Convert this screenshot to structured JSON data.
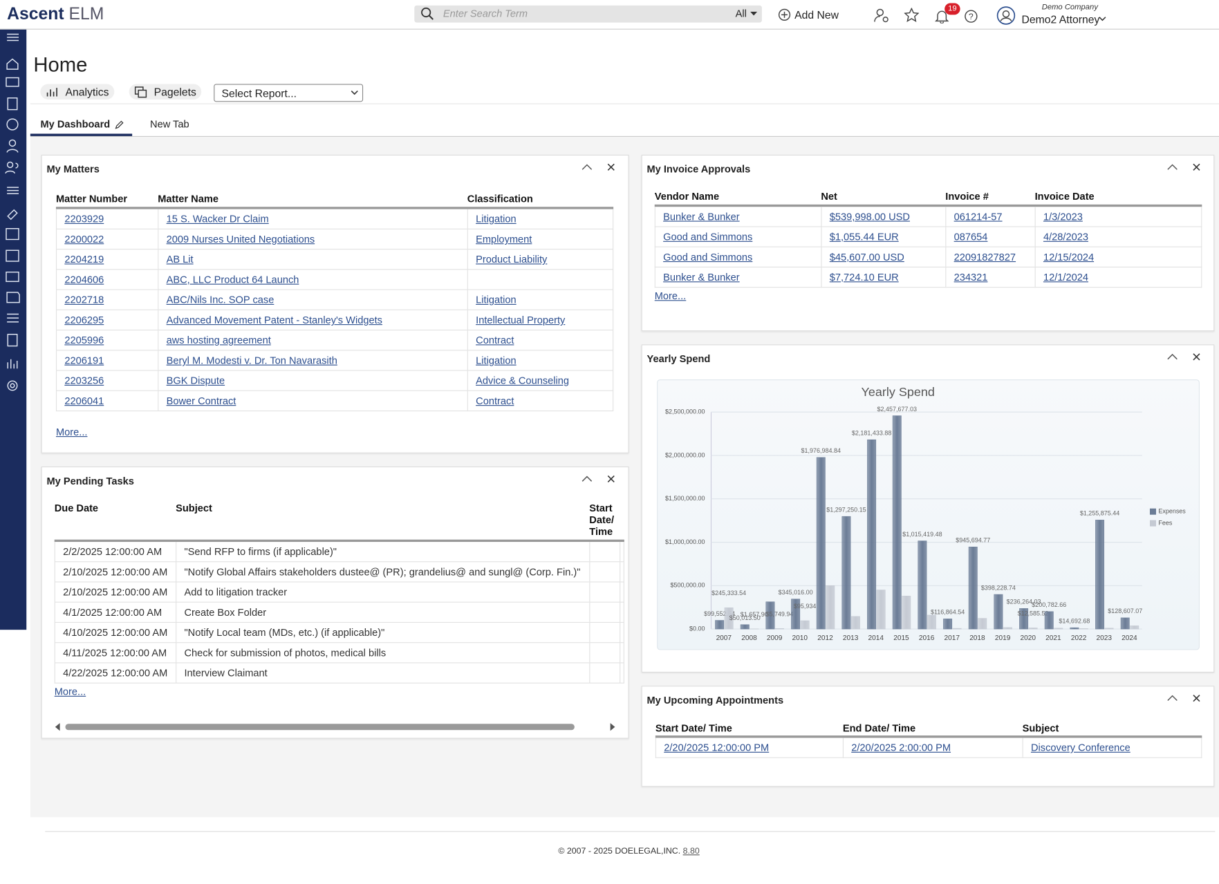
{
  "header": {
    "brand": "Ascent",
    "product": "ELM",
    "search_placeholder": "Enter Search Term",
    "search_scope": "All",
    "add_new": "Add New",
    "notifications": "19",
    "company": "Demo Company",
    "user": "Demo2 Attorney"
  },
  "page": {
    "title": "Home",
    "buttons": [
      "Analytics",
      "Pagelets"
    ],
    "report_select": "Select Report...",
    "tabs": [
      "My Dashboard",
      "New Tab"
    ]
  },
  "matters": {
    "title": "My Matters",
    "columns": [
      "Matter Number",
      "Matter Name",
      "Classification"
    ],
    "rows": [
      [
        "2203929",
        "15 S. Wacker Dr Claim",
        "Litigation"
      ],
      [
        "2200022",
        "2009 Nurses United Negotiations",
        "Employment"
      ],
      [
        "2204219",
        "AB Lit",
        "Product Liability"
      ],
      [
        "2204606",
        "ABC, LLC Product 64 Launch",
        null
      ],
      [
        "2202718",
        "ABC/Nils Inc. SOP case",
        "Litigation"
      ],
      [
        "2206295",
        "Advanced Movement Patent - Stanley's Widgets",
        "Intellectual Property"
      ],
      [
        "2205996",
        "aws hosting agreement",
        "Contract"
      ],
      [
        "2206191",
        "Beryl M. Modesti v. Dr. Ton Navarasith",
        "Litigation"
      ],
      [
        "2203256",
        "BGK Dispute",
        "Advice & Counseling"
      ],
      [
        "2206041",
        "Bower Contract",
        "Contract"
      ]
    ],
    "more": "More..."
  },
  "tasks": {
    "title": "My Pending Tasks",
    "columns": [
      "Due Date",
      "Subject",
      "Start Date/ Time"
    ],
    "rows": [
      [
        "2/2/2025 12:00:00 AM",
        "\"Send RFP to firms (if applicable)\""
      ],
      [
        "2/10/2025 12:00:00 AM",
        "\"Notify Global Affairs stakeholders dustee@ (PR); grandelius@ and sungl@ (Corp. Fin.)\""
      ],
      [
        "2/10/2025 12:00:00 AM",
        "Add to litigation tracker"
      ],
      [
        "4/1/2025 12:00:00 AM",
        "Create Box Folder"
      ],
      [
        "4/10/2025 12:00:00 AM",
        "\"Notify Local team (MDs, etc.) (if applicable)\""
      ],
      [
        "4/11/2025 12:00:00 AM",
        "Check for submission of photos, medical bills"
      ],
      [
        "4/22/2025 12:00:00 AM",
        "Interview Claimant"
      ]
    ],
    "more": "More..."
  },
  "invoices": {
    "title": "My Invoice Approvals",
    "columns": [
      "Vendor Name",
      "Net",
      "Invoice #",
      "Invoice Date"
    ],
    "rows": [
      [
        "Bunker & Bunker",
        "$539,998.00 USD",
        "061214-57",
        "1/3/2023"
      ],
      [
        "Good and Simmons",
        "$1,055.44 EUR",
        "087654",
        "4/28/2023"
      ],
      [
        "Good and Simmons",
        "$45,607.00 USD",
        "22091827827",
        "12/15/2024"
      ],
      [
        "Bunker & Bunker",
        "$7,724.10 EUR",
        "234321",
        "12/1/2024"
      ]
    ],
    "more": "More..."
  },
  "spend_widget": {
    "title": "Yearly Spend"
  },
  "chart_data": {
    "type": "bar",
    "title": "Yearly Spend",
    "categories": [
      "2007",
      "2008",
      "2009",
      "2010",
      "2012",
      "2013",
      "2014",
      "2015",
      "2016",
      "2017",
      "2018",
      "2019",
      "2020",
      "2021",
      "2022",
      "2023",
      "2024"
    ],
    "series": [
      {
        "name": "Expenses",
        "color": "#6b7c96",
        "values": [
          99552.54,
          50013.5,
          313000,
          345016,
          1976984.84,
          1297250.15,
          2181433.88,
          2457677.03,
          1015419.48,
          116864.54,
          945694.77,
          398228.74,
          236264.03,
          200782.66,
          14692.68,
          1255875.44,
          128607.07
        ],
        "value_labels": [
          "$99,552.54",
          "$50,013.50",
          null,
          "$345,016.00",
          "$1,976,984.84",
          "$1,297,250.15",
          "$2,181,433.88",
          "$2,457,677.03",
          "$1,015,419.48",
          "$116,864.54",
          "$945,694.77",
          "$398,228.74",
          "$236,264.03",
          "$200,782.66",
          "$14,692.68",
          "$1,255,875.44",
          "$128,607.07"
        ]
      },
      {
        "name": "Fees",
        "color": "#c5cad3",
        "values": [
          245333.54,
          1657.9,
          5749.94,
          95934,
          500000,
          145000,
          450000,
          380000,
          160000,
          7580,
          123000,
          17000,
          12585.52,
          10000,
          5000,
          10000,
          37000
        ],
        "value_labels": [
          "$245,333.54",
          "$1,657.90",
          "$5,749.94",
          "$95,934",
          null,
          null,
          null,
          null,
          null,
          null,
          null,
          null,
          "$12,585.52",
          null,
          null,
          null,
          null
        ]
      }
    ],
    "ylim": [
      0,
      2500000
    ],
    "yticks": [
      {
        "value": 0,
        "label": "$0.00"
      },
      {
        "value": 500000,
        "label": "$500,000.00"
      },
      {
        "value": 1000000,
        "label": "$1,000,000.00"
      },
      {
        "value": 1500000,
        "label": "$1,500,000.00"
      },
      {
        "value": 2000000,
        "label": "$2,000,000.00"
      },
      {
        "value": 2500000,
        "label": "$2,500,000.00"
      }
    ],
    "grid": true,
    "legend": "right"
  },
  "appointments": {
    "title": "My Upcoming Appointments",
    "columns": [
      "Start Date/ Time",
      "End Date/ Time",
      "Subject"
    ],
    "rows": [
      [
        "2/20/2025 12:00:00 PM",
        "2/20/2025 2:00:00 PM",
        "Discovery Conference"
      ]
    ]
  },
  "footer": {
    "copyright": "© 2007 - 2025 DOELEGAL,INC.",
    "version": "8.80"
  }
}
